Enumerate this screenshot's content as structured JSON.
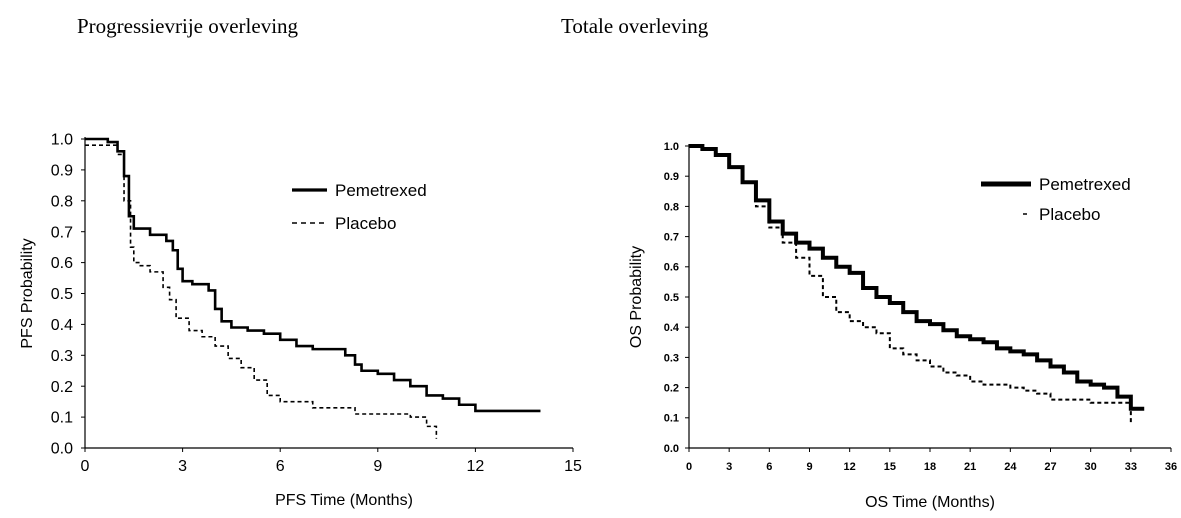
{
  "headings": {
    "left": "Progressievrije overleving",
    "right": "Totale overleving"
  },
  "chart_data": [
    {
      "type": "line",
      "step": true,
      "title": "",
      "xlabel": "PFS Time (Months)",
      "ylabel": "PFS Probability",
      "xlim": [
        0,
        15
      ],
      "ylim": [
        0,
        1.0
      ],
      "xticks": [
        "0",
        "3",
        "6",
        "9",
        "12",
        "15"
      ],
      "yticks": [
        "0.0",
        "0.1",
        "0.2",
        "0.3",
        "0.4",
        "0.5",
        "0.6",
        "0.7",
        "0.8",
        "0.9",
        "1.0"
      ],
      "legend_position": "top-right",
      "series": [
        {
          "name": "Pemetrexed",
          "style": "solid",
          "x": [
            0,
            0.7,
            1.0,
            1.2,
            1.35,
            1.5,
            2.0,
            2.5,
            2.7,
            2.85,
            3.0,
            3.3,
            3.8,
            4.0,
            4.2,
            4.5,
            5.0,
            5.5,
            6.0,
            6.5,
            7.0,
            7.5,
            8.0,
            8.3,
            8.5,
            9.0,
            9.5,
            10.0,
            10.5,
            11.0,
            11.5,
            12.0,
            14.0
          ],
          "y": [
            1.0,
            0.99,
            0.96,
            0.88,
            0.75,
            0.71,
            0.69,
            0.67,
            0.64,
            0.58,
            0.54,
            0.53,
            0.51,
            0.45,
            0.41,
            0.39,
            0.38,
            0.37,
            0.35,
            0.33,
            0.32,
            0.32,
            0.3,
            0.27,
            0.25,
            0.24,
            0.22,
            0.2,
            0.17,
            0.16,
            0.14,
            0.12,
            0.12
          ]
        },
        {
          "name": "Placebo",
          "style": "dashed",
          "x": [
            0,
            1.0,
            1.2,
            1.4,
            1.5,
            1.7,
            2.0,
            2.4,
            2.6,
            2.8,
            3.2,
            3.6,
            4.0,
            4.4,
            4.8,
            5.2,
            5.6,
            6.0,
            7.0,
            8.3,
            9.0,
            10.0,
            10.5,
            10.8
          ],
          "y": [
            0.98,
            0.95,
            0.8,
            0.65,
            0.6,
            0.59,
            0.57,
            0.52,
            0.48,
            0.42,
            0.38,
            0.36,
            0.33,
            0.29,
            0.26,
            0.22,
            0.17,
            0.15,
            0.13,
            0.11,
            0.11,
            0.1,
            0.07,
            0.03
          ]
        }
      ]
    },
    {
      "type": "line",
      "step": true,
      "title": "",
      "xlabel": "OS Time (Months)",
      "ylabel": "OS Probability",
      "xlim": [
        0,
        36
      ],
      "ylim": [
        0,
        1.0
      ],
      "xticks": [
        "0",
        "3",
        "6",
        "9",
        "12",
        "15",
        "18",
        "21",
        "24",
        "27",
        "30",
        "33",
        "36"
      ],
      "yticks": [
        "0.0",
        "0.1",
        "0.2",
        "0.3",
        "0.4",
        "0.5",
        "0.6",
        "0.7",
        "0.8",
        "0.9",
        "1.0"
      ],
      "legend_position": "top-right",
      "series": [
        {
          "name": "Pemetrexed",
          "style": "solid",
          "x": [
            0,
            1,
            2,
            3,
            4,
            5,
            6,
            7,
            8,
            9,
            10,
            11,
            12,
            13,
            14,
            15,
            16,
            17,
            18,
            19,
            20,
            21,
            22,
            23,
            24,
            25,
            26,
            27,
            28,
            29,
            30,
            31,
            32,
            33,
            34
          ],
          "y": [
            1.0,
            0.99,
            0.97,
            0.93,
            0.88,
            0.82,
            0.75,
            0.71,
            0.68,
            0.66,
            0.63,
            0.6,
            0.58,
            0.53,
            0.5,
            0.48,
            0.45,
            0.42,
            0.41,
            0.39,
            0.37,
            0.36,
            0.35,
            0.33,
            0.32,
            0.31,
            0.29,
            0.27,
            0.25,
            0.22,
            0.21,
            0.2,
            0.17,
            0.13,
            0.13
          ]
        },
        {
          "name": "Placebo",
          "style": "dashed",
          "x": [
            0,
            1,
            2,
            3,
            4,
            5,
            6,
            7,
            8,
            9,
            10,
            11,
            12,
            13,
            14,
            15,
            16,
            17,
            18,
            19,
            20,
            21,
            22,
            23,
            24,
            25,
            26,
            27,
            28,
            29,
            30,
            31,
            32,
            33
          ],
          "y": [
            1.0,
            0.99,
            0.97,
            0.93,
            0.88,
            0.8,
            0.73,
            0.68,
            0.63,
            0.57,
            0.5,
            0.45,
            0.42,
            0.4,
            0.38,
            0.33,
            0.31,
            0.29,
            0.27,
            0.25,
            0.24,
            0.22,
            0.21,
            0.21,
            0.2,
            0.19,
            0.18,
            0.16,
            0.16,
            0.16,
            0.15,
            0.15,
            0.15,
            0.08
          ]
        }
      ]
    }
  ]
}
